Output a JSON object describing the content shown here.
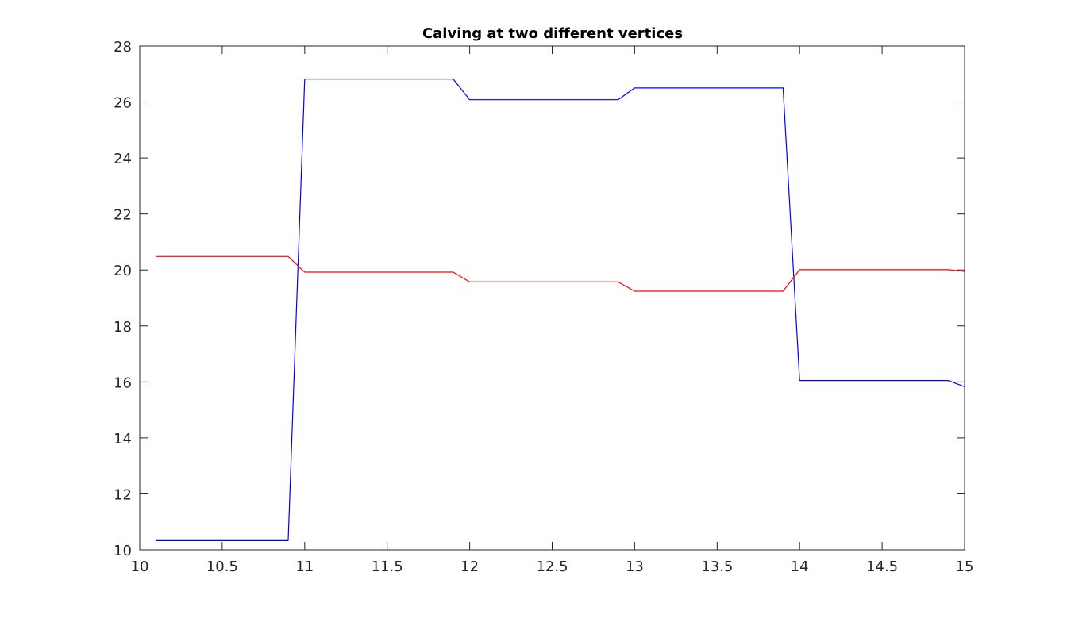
{
  "chart_data": {
    "type": "line",
    "title": "Calving at two different vertices",
    "xlabel": "",
    "ylabel": "",
    "xlim": [
      10,
      15
    ],
    "ylim": [
      10,
      28
    ],
    "xticks": [
      10,
      10.5,
      11,
      11.5,
      12,
      12.5,
      13,
      13.5,
      14,
      14.5,
      15
    ],
    "xtick_labels": [
      "10",
      "10.5",
      "11",
      "11.5",
      "12",
      "12.5",
      "13",
      "13.5",
      "14",
      "14.5",
      "15"
    ],
    "yticks": [
      10,
      12,
      14,
      16,
      18,
      20,
      22,
      24,
      26,
      28
    ],
    "ytick_labels": [
      "10",
      "12",
      "14",
      "16",
      "18",
      "20",
      "22",
      "24",
      "26",
      "28"
    ],
    "grid": false,
    "legend": null,
    "series": [
      {
        "color": "#0000ff",
        "x": [
          10.1,
          10.9,
          11.0,
          11.9,
          12.0,
          12.9,
          13.0,
          13.9,
          14.0,
          14.9,
          15.0
        ],
        "y": [
          10.33,
          10.33,
          26.82,
          26.82,
          26.08,
          26.08,
          26.5,
          26.5,
          16.05,
          16.05,
          15.83
        ]
      },
      {
        "color": "#ff0000",
        "x": [
          10.1,
          10.9,
          11.0,
          11.9,
          12.0,
          12.9,
          13.0,
          13.9,
          14.0,
          14.9,
          15.0
        ],
        "y": [
          20.48,
          20.48,
          19.92,
          19.92,
          19.57,
          19.57,
          19.24,
          19.24,
          20.01,
          20.01,
          19.95
        ]
      }
    ]
  }
}
